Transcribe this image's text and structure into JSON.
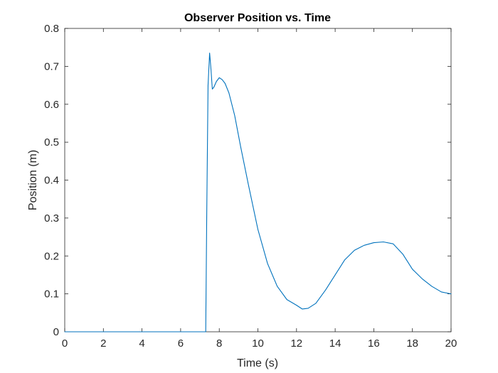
{
  "chart_data": {
    "type": "line",
    "title": "Observer Position vs. Time",
    "xlabel": "Time (s)",
    "ylabel": "Position (m)",
    "xlim": [
      0,
      20
    ],
    "ylim": [
      0,
      0.8
    ],
    "xticks": [
      0,
      2,
      4,
      6,
      8,
      10,
      12,
      14,
      16,
      18,
      20
    ],
    "yticks": [
      0,
      0.1,
      0.2,
      0.3,
      0.4,
      0.5,
      0.6,
      0.7,
      0.8
    ],
    "xtick_labels": [
      "0",
      "2",
      "4",
      "6",
      "8",
      "10",
      "12",
      "14",
      "16",
      "18",
      "20"
    ],
    "ytick_labels": [
      "0",
      "0.1",
      "0.2",
      "0.3",
      "0.4",
      "0.5",
      "0.6",
      "0.7",
      "0.8"
    ],
    "grid": false,
    "series": [
      {
        "color": "#0072bd",
        "x": [
          0,
          7.3,
          7.35,
          7.42,
          7.5,
          7.56,
          7.64,
          7.72,
          7.85,
          8.0,
          8.15,
          8.3,
          8.5,
          8.8,
          9.1,
          9.5,
          10.0,
          10.5,
          11.0,
          11.5,
          12.0,
          12.3,
          12.6,
          13.0,
          13.5,
          14.0,
          14.5,
          15.0,
          15.5,
          16.0,
          16.5,
          17.0,
          17.5,
          18.0,
          18.5,
          19.0,
          19.5,
          20.0
        ],
        "y": [
          0,
          0,
          0.3,
          0.65,
          0.735,
          0.7,
          0.64,
          0.645,
          0.66,
          0.67,
          0.665,
          0.655,
          0.63,
          0.57,
          0.49,
          0.39,
          0.27,
          0.18,
          0.12,
          0.085,
          0.07,
          0.06,
          0.062,
          0.075,
          0.11,
          0.15,
          0.19,
          0.215,
          0.228,
          0.235,
          0.237,
          0.232,
          0.205,
          0.165,
          0.14,
          0.12,
          0.105,
          0.1
        ]
      }
    ]
  }
}
